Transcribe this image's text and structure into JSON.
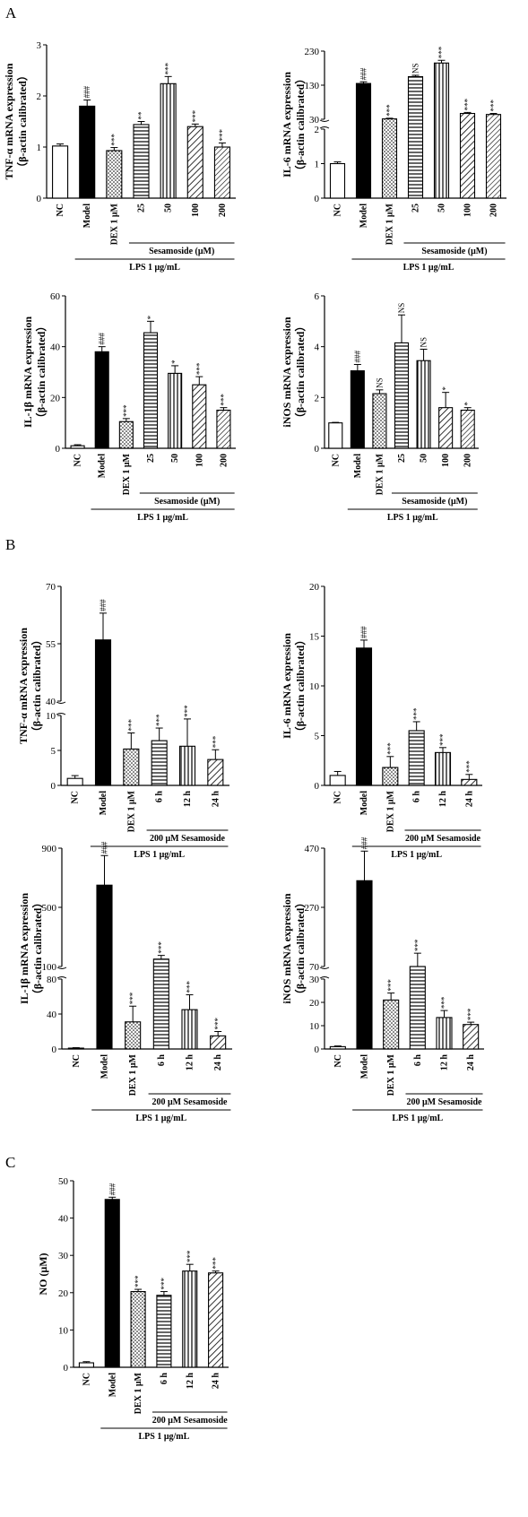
{
  "panel_labels": [
    "A",
    "B",
    "C"
  ],
  "colors": {
    "ink": "#000000",
    "background": "#ffffff"
  },
  "chart_data": [
    {
      "id": "A1",
      "panel": "A",
      "type": "bar",
      "ylabel": [
        "TNF-α mRNA expression",
        "（β-actin calibrated）"
      ],
      "ylim": [
        0,
        3
      ],
      "yticks": [
        0,
        1,
        2,
        3
      ],
      "categories": [
        "NC",
        "Model",
        "DEX 1 μM",
        "25",
        "50",
        "100",
        "200"
      ],
      "values": [
        1.02,
        1.8,
        0.93,
        1.44,
        2.24,
        1.4,
        1.0
      ],
      "errors": [
        0.04,
        0.12,
        0.06,
        0.06,
        0.14,
        0.05,
        0.08
      ],
      "fills": [
        "white",
        "black",
        "dots",
        "hlines",
        "vlines",
        "diag",
        "diag2"
      ],
      "significance": [
        "",
        "###",
        "***",
        "**",
        "***",
        "***",
        "***"
      ],
      "groups": [
        {
          "label": "Sesamoside (μM)",
          "from": 3,
          "to": 6
        },
        {
          "label": "LPS 1 μg/mL",
          "from": 1,
          "to": 6
        }
      ]
    },
    {
      "id": "A2",
      "panel": "A",
      "type": "bar",
      "ylabel": [
        "IL-6 mRNA expression",
        "（β-actin calibrated）"
      ],
      "axis_break": {
        "lower": [
          0,
          2
        ],
        "upper": [
          30,
          230
        ]
      },
      "yticks_lower": [
        0,
        1,
        2
      ],
      "yticks_upper": [
        30,
        130,
        230
      ],
      "categories": [
        "NC",
        "Model",
        "DEX 1 μM",
        "25",
        "50",
        "100",
        "200"
      ],
      "values": [
        1.0,
        135,
        31,
        155,
        195,
        47,
        44
      ],
      "errors": [
        0.05,
        5,
        2,
        4,
        8,
        3,
        3
      ],
      "fills": [
        "white",
        "black",
        "dots",
        "hlines",
        "vlines",
        "diag",
        "diag2"
      ],
      "significance": [
        "",
        "###",
        "***",
        "NS",
        "***",
        "***",
        "***"
      ],
      "groups": [
        {
          "label": "Sesamoside (μM)",
          "from": 3,
          "to": 6
        },
        {
          "label": "LPS 1 μg/mL",
          "from": 1,
          "to": 6
        }
      ]
    },
    {
      "id": "A3",
      "panel": "A",
      "type": "bar",
      "ylabel": [
        "IL-1β mRNA expression",
        "（β-actin calibrated）"
      ],
      "ylim": [
        0,
        60
      ],
      "yticks": [
        0,
        20,
        40,
        60
      ],
      "categories": [
        "NC",
        "Model",
        "DEX 1 μM",
        "25",
        "50",
        "100",
        "200"
      ],
      "values": [
        1.0,
        38.0,
        10.5,
        45.5,
        29.5,
        25.0,
        15.0
      ],
      "errors": [
        0.4,
        2.0,
        1.2,
        4.5,
        3.0,
        3.2,
        1.0
      ],
      "fills": [
        "white",
        "black",
        "dots",
        "hlines",
        "vlines",
        "diag",
        "diag2"
      ],
      "significance": [
        "",
        "###",
        "***",
        "*",
        "*",
        "***",
        "***"
      ],
      "groups": [
        {
          "label": "Sesamoside (μM)",
          "from": 3,
          "to": 6
        },
        {
          "label": "LPS 1 μg/mL",
          "from": 1,
          "to": 6
        }
      ]
    },
    {
      "id": "A4",
      "panel": "A",
      "type": "bar",
      "ylabel": [
        "iNOS mRNA expression",
        "（β-actin calibrated）"
      ],
      "ylim": [
        0,
        6
      ],
      "yticks": [
        0,
        2,
        4,
        6
      ],
      "categories": [
        "NC",
        "Model",
        "DEX 1 μM",
        "25",
        "50",
        "100",
        "200"
      ],
      "values": [
        1.0,
        3.05,
        2.15,
        4.15,
        3.45,
        1.6,
        1.5
      ],
      "errors": [
        0.02,
        0.25,
        0.15,
        1.1,
        0.45,
        0.6,
        0.1
      ],
      "fills": [
        "white",
        "black",
        "dots",
        "hlines",
        "vlines",
        "diag",
        "diag2"
      ],
      "significance": [
        "",
        "###",
        "NS",
        "NS",
        "NS",
        "*",
        "*"
      ],
      "groups": [
        {
          "label": "Sesamoside (μM)",
          "from": 3,
          "to": 6
        },
        {
          "label": "LPS 1 μg/mL",
          "from": 1,
          "to": 6
        }
      ]
    },
    {
      "id": "B1",
      "panel": "B",
      "type": "bar",
      "ylabel": [
        "TNF-α mRNA expression",
        "（β-actin calibrated）"
      ],
      "axis_break": {
        "lower": [
          0,
          10
        ],
        "upper": [
          40,
          70
        ]
      },
      "yticks_lower": [
        0,
        5,
        10
      ],
      "yticks_upper": [
        40,
        55,
        70
      ],
      "categories": [
        "NC",
        "Model",
        "DEX 1 μM",
        "6 h",
        "12 h",
        "24 h"
      ],
      "values": [
        1.0,
        56,
        5.2,
        6.4,
        5.6,
        3.7
      ],
      "errors": [
        0.4,
        7,
        2.3,
        1.8,
        3.9,
        1.4
      ],
      "fills": [
        "white",
        "black",
        "dots",
        "hlines",
        "vlines",
        "diag"
      ],
      "significance": [
        "",
        "###",
        "***",
        "***",
        "***",
        "***"
      ],
      "groups": [
        {
          "label": "200  μM Sesamoside",
          "from": 3,
          "to": 5
        },
        {
          "label": "LPS 1 μg/mL",
          "from": 1,
          "to": 5
        }
      ]
    },
    {
      "id": "B2",
      "panel": "B",
      "type": "bar",
      "ylabel": [
        "IL-6 mRNA expression",
        "（β-actin calibrated）"
      ],
      "ylim": [
        0,
        20
      ],
      "yticks": [
        0,
        5,
        10,
        15,
        20
      ],
      "categories": [
        "NC",
        "Model",
        "DEX 1 μM",
        "6 h",
        "12 h",
        "24 h"
      ],
      "values": [
        1.0,
        13.8,
        1.8,
        5.5,
        3.3,
        0.6
      ],
      "errors": [
        0.4,
        0.8,
        1.1,
        0.9,
        0.5,
        0.5
      ],
      "fills": [
        "white",
        "black",
        "dots",
        "hlines",
        "vlines",
        "diag"
      ],
      "significance": [
        "",
        "###",
        "***",
        "***",
        "***",
        "***"
      ],
      "groups": [
        {
          "label": "200  μM Sesamoside",
          "from": 3,
          "to": 5
        },
        {
          "label": "LPS 1 μg/mL",
          "from": 1,
          "to": 5
        }
      ]
    },
    {
      "id": "B3",
      "panel": "B",
      "type": "bar",
      "ylabel": [
        "IL-1β mRNA expression",
        "（β-actin calibrated）"
      ],
      "axis_break": {
        "lower": [
          0,
          80
        ],
        "upper": [
          100,
          900
        ]
      },
      "yticks_lower": [
        0,
        40,
        80
      ],
      "yticks_upper": [
        100,
        500,
        900
      ],
      "categories": [
        "NC",
        "Model",
        "DEX 1 μM",
        "6 h",
        "12 h",
        "24 h"
      ],
      "values": [
        1.0,
        650,
        31,
        150,
        45,
        15
      ],
      "errors": [
        0.5,
        200,
        18,
        25,
        17,
        5
      ],
      "fills": [
        "white",
        "black",
        "dots",
        "hlines",
        "vlines",
        "diag"
      ],
      "significance": [
        "",
        "###",
        "***",
        "***",
        "***",
        "***"
      ],
      "groups": [
        {
          "label": "200  μM Sesamoside",
          "from": 3,
          "to": 5
        },
        {
          "label": "LPS 1 μg/mL",
          "from": 1,
          "to": 5
        }
      ]
    },
    {
      "id": "B4",
      "panel": "B",
      "type": "bar",
      "ylabel": [
        "iNOS mRNA expression",
        "（β-actin calibrated）"
      ],
      "axis_break": {
        "lower": [
          0,
          30
        ],
        "upper": [
          70,
          470
        ]
      },
      "yticks_lower": [
        0,
        10,
        20,
        30
      ],
      "yticks_upper": [
        70,
        270,
        470
      ],
      "categories": [
        "NC",
        "Model",
        "DEX 1 μM",
        "6 h",
        "12 h",
        "24 h"
      ],
      "values": [
        1.0,
        360,
        21,
        70,
        13.5,
        10.5
      ],
      "errors": [
        0.3,
        100,
        3,
        45,
        3,
        1
      ],
      "fills": [
        "white",
        "black",
        "dots",
        "hlines",
        "vlines",
        "diag"
      ],
      "significance": [
        "",
        "###",
        "***",
        "***",
        "***",
        "***"
      ],
      "groups": [
        {
          "label": "200  μM Sesamoside",
          "from": 3,
          "to": 5
        },
        {
          "label": "LPS 1 μg/mL",
          "from": 1,
          "to": 5
        }
      ]
    },
    {
      "id": "C1",
      "panel": "C",
      "type": "bar",
      "ylabel": [
        "NO (μM)"
      ],
      "ylim": [
        0,
        50
      ],
      "yticks": [
        0,
        10,
        20,
        30,
        40,
        50
      ],
      "categories": [
        "NC",
        "Model",
        "DEX 1 μM",
        "6 h",
        "12 h",
        "24 h"
      ],
      "values": [
        1.2,
        45,
        20.3,
        19.3,
        25.8,
        25.3
      ],
      "errors": [
        0.3,
        0.6,
        0.6,
        1.0,
        1.8,
        0.5
      ],
      "fills": [
        "white",
        "black",
        "dots",
        "hlines",
        "vlines",
        "diag"
      ],
      "significance": [
        "",
        "###",
        "***",
        "***",
        "***",
        "***"
      ],
      "groups": [
        {
          "label": "200  μM Sesamoside",
          "from": 3,
          "to": 5
        },
        {
          "label": "LPS 1 μg/mL",
          "from": 1,
          "to": 5
        }
      ]
    }
  ]
}
